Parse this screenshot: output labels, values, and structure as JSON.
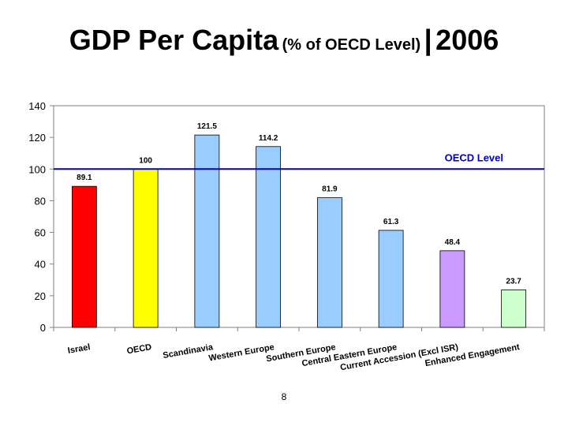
{
  "slide": {
    "title_main": "GDP Per Capita",
    "title_sub": "(% of OECD Level)",
    "title_separator": "|",
    "title_year": "2006",
    "page_number": "8"
  },
  "chart_data": {
    "type": "bar",
    "categories": [
      "Israel",
      "OECD",
      "Scandinavia",
      "Western Europe",
      "Southern Europe",
      "Central Eastern Europe",
      "Current Accession (Excl ISR)",
      "Enhanced Engagement"
    ],
    "values": [
      89.1,
      100,
      121.5,
      114.2,
      81.9,
      61.3,
      48.4,
      23.7
    ],
    "value_labels": [
      "89.1",
      "100",
      "121.5",
      "114.2",
      "81.9",
      "61.3",
      "48.4",
      "23.7"
    ],
    "colors": [
      "#ff0000",
      "#ffff00",
      "#99ccff",
      "#99ccff",
      "#99ccff",
      "#99ccff",
      "#cc99ff",
      "#ccffcc"
    ],
    "ylim": [
      0,
      140
    ],
    "yticks": [
      0,
      20,
      40,
      60,
      80,
      100,
      120,
      140
    ],
    "reference_line": {
      "value": 100,
      "label": "OECD Level",
      "color": "#0000cc"
    },
    "grid": false,
    "legend": "none"
  }
}
